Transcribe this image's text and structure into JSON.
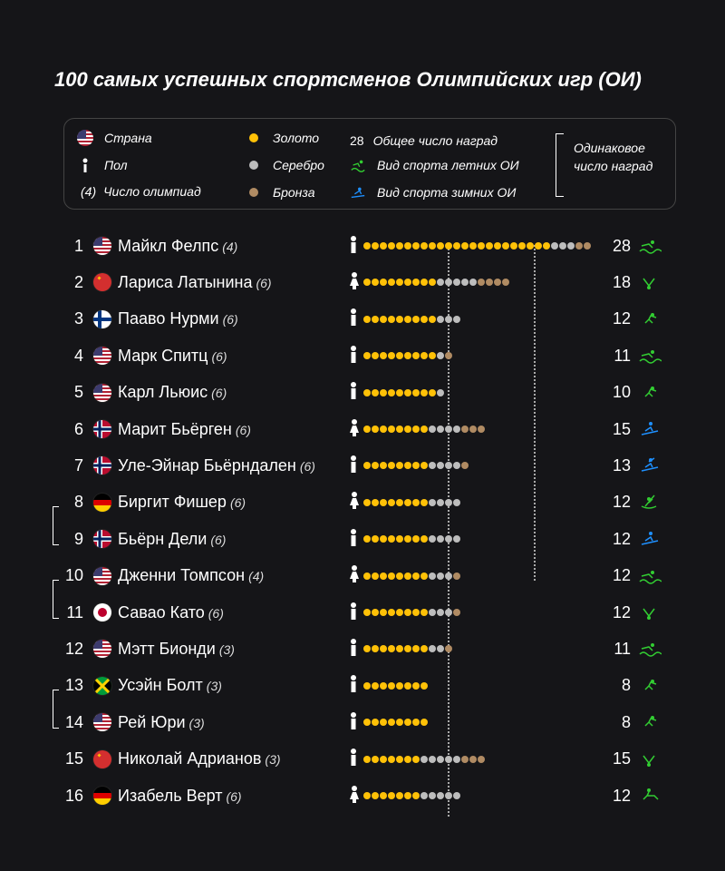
{
  "page_title": "100 самых успешных спортсменов Олимпийских игр (ОИ)",
  "legend": {
    "country": "Страна",
    "gender": "Пол",
    "olympics_num_icon": "(4)",
    "olympics_num": "Число олимпиад",
    "gold": "Золото",
    "silver": "Серебро",
    "bronze": "Бронза",
    "total_medals_icon": "28",
    "total_medals": "Общее число наград",
    "summer_sport": "Вид спорта летних ОИ",
    "winter_sport": "Вид спорта зимних ОИ",
    "same_medals": "Одинаковое число наград"
  },
  "chart_data": {
    "type": "dot_plot",
    "athletes": [
      {
        "rank": "1",
        "country": "US",
        "name": "Майкл Фелпс",
        "olympics": "(4)",
        "gender": "male",
        "gold": 23,
        "silver": 3,
        "bronze": 2,
        "total": "28",
        "sport": "swimming",
        "season": "summer"
      },
      {
        "rank": "2",
        "country": "USSR",
        "name": "Лариса Латынина",
        "olympics": "(6)",
        "gender": "female",
        "gold": 9,
        "silver": 5,
        "bronze": 4,
        "total": "18",
        "sport": "gymnastics",
        "season": "summer"
      },
      {
        "rank": "3",
        "country": "FI",
        "name": "Пааво Нурми",
        "olympics": "(6)",
        "gender": "male",
        "gold": 9,
        "silver": 3,
        "bronze": 0,
        "total": "12",
        "sport": "athletics",
        "season": "summer"
      },
      {
        "rank": "4",
        "country": "US",
        "name": "Марк Спитц",
        "olympics": "(6)",
        "gender": "male",
        "gold": 9,
        "silver": 1,
        "bronze": 1,
        "total": "11",
        "sport": "swimming",
        "season": "summer"
      },
      {
        "rank": "5",
        "country": "US",
        "name": "Карл Льюис",
        "olympics": "(6)",
        "gender": "male",
        "gold": 9,
        "silver": 1,
        "bronze": 0,
        "total": "10",
        "sport": "athletics",
        "season": "summer"
      },
      {
        "rank": "6",
        "country": "NO",
        "name": "Марит Бьёрген",
        "olympics": "(6)",
        "gender": "female",
        "gold": 8,
        "silver": 4,
        "bronze": 3,
        "total": "15",
        "sport": "ski",
        "season": "winter"
      },
      {
        "rank": "7",
        "country": "NO",
        "name": "Уле-Эйнар Бьёрндален",
        "olympics": "(6)",
        "gender": "male",
        "gold": 8,
        "silver": 4,
        "bronze": 1,
        "total": "13",
        "sport": "biathlon",
        "season": "winter"
      },
      {
        "rank": "8",
        "country": "DE",
        "name": "Биргит Фишер",
        "olympics": "(6)",
        "gender": "female",
        "gold": 8,
        "silver": 4,
        "bronze": 0,
        "total": "12",
        "sport": "canoe",
        "season": "summer"
      },
      {
        "rank": "9",
        "country": "NO",
        "name": "Бьёрн Дели",
        "olympics": "(6)",
        "gender": "male",
        "gold": 8,
        "silver": 4,
        "bronze": 0,
        "total": "12",
        "sport": "ski",
        "season": "winter"
      },
      {
        "rank": "10",
        "country": "US",
        "name": "Дженни Томпсон",
        "olympics": "(4)",
        "gender": "female",
        "gold": 8,
        "silver": 3,
        "bronze": 1,
        "total": "12",
        "sport": "swimming",
        "season": "summer"
      },
      {
        "rank": "11",
        "country": "JP",
        "name": "Савао Като",
        "olympics": "(6)",
        "gender": "male",
        "gold": 8,
        "silver": 3,
        "bronze": 1,
        "total": "12",
        "sport": "gymnastics",
        "season": "summer"
      },
      {
        "rank": "12",
        "country": "US",
        "name": "Мэтт Бионди",
        "olympics": "(3)",
        "gender": "male",
        "gold": 8,
        "silver": 2,
        "bronze": 1,
        "total": "11",
        "sport": "swimming",
        "season": "summer"
      },
      {
        "rank": "13",
        "country": "JM",
        "name": "Усэйн Болт",
        "olympics": "(3)",
        "gender": "male",
        "gold": 8,
        "silver": 0,
        "bronze": 0,
        "total": "8",
        "sport": "athletics",
        "season": "summer"
      },
      {
        "rank": "14",
        "country": "US",
        "name": "Рей Юри",
        "olympics": "(3)",
        "gender": "male",
        "gold": 8,
        "silver": 0,
        "bronze": 0,
        "total": "8",
        "sport": "athletics",
        "season": "summer"
      },
      {
        "rank": "15",
        "country": "USSR",
        "name": "Николай Адрианов",
        "olympics": "(3)",
        "gender": "male",
        "gold": 7,
        "silver": 5,
        "bronze": 3,
        "total": "15",
        "sport": "gymnastics",
        "season": "summer"
      },
      {
        "rank": "16",
        "country": "DE",
        "name": "Изабель Верт",
        "olympics": "(6)",
        "gender": "female",
        "gold": 7,
        "silver": 5,
        "bronze": 0,
        "total": "12",
        "sport": "equestrian",
        "season": "summer"
      }
    ]
  }
}
